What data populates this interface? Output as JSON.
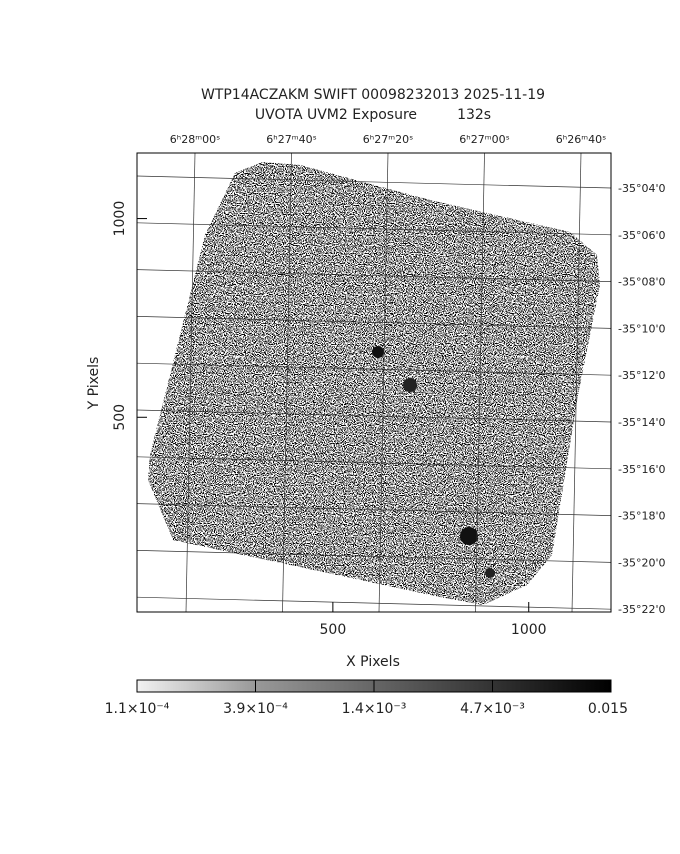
{
  "chart_data": {
    "type": "image",
    "title": "WTP14ACZAKM SWIFT 00098232013 2025-11-19",
    "subtitle": "UVOTA UVM2 Exposure         132s",
    "x_label": "X Pixels",
    "y_label": "Y Pixels",
    "xlim": [
      0,
      1210
    ],
    "ylim": [
      10,
      1165
    ],
    "xticks": [
      500,
      1000
    ],
    "yticks": [
      500,
      1000
    ],
    "top_labels": [
      "6ʰ28ᵐ00ˢ",
      "6ʰ27ᵐ40ˢ",
      "6ʰ27ᵐ20ˢ",
      "6ʰ27ᵐ00ˢ",
      "6ʰ26ᵐ40ˢ"
    ],
    "right_labels": [
      "-35°04'0",
      "-35°06'0",
      "-35°08'0",
      "-35°10'0",
      "-35°12'0",
      "-35°14'0",
      "-35°16'0",
      "-35°18'0",
      "-35°20'0",
      "-35°22'0"
    ],
    "colorbar_labels": [
      "1.1×10⁻⁴",
      "3.9×10⁻⁴",
      "1.4×10⁻³",
      "4.7×10⁻³",
      "0.015"
    ]
  }
}
